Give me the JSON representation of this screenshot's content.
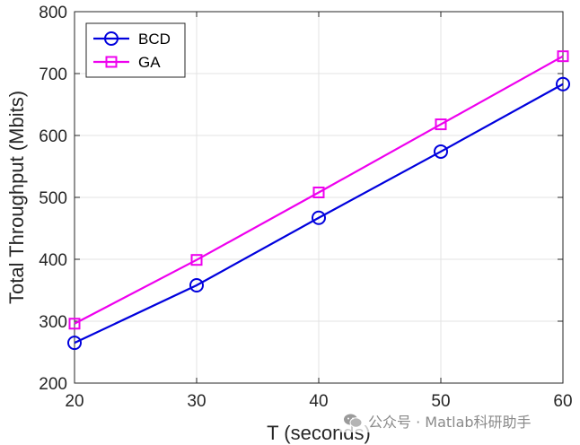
{
  "chart_data": {
    "type": "line",
    "x": [
      20,
      30,
      40,
      50,
      60
    ],
    "series": [
      {
        "name": "BCD",
        "values": [
          265,
          358,
          467,
          574,
          683
        ],
        "color": "#0000dd",
        "marker": "circle"
      },
      {
        "name": "GA",
        "values": [
          296,
          399,
          508,
          618,
          728
        ],
        "color": "#ee00ee",
        "marker": "square"
      }
    ],
    "xlabel": "T (seconds)",
    "ylabel": "Total Throughput (Mbits)",
    "xlim": [
      20,
      60
    ],
    "ylim": [
      200,
      800
    ],
    "xticks": [
      "20",
      "30",
      "40",
      "50",
      "60"
    ],
    "yticks": [
      "200",
      "300",
      "400",
      "500",
      "600",
      "700",
      "800"
    ],
    "grid": true,
    "legend_position": "top-left"
  },
  "watermark": {
    "text": "公众号 · Matlab科研助手",
    "icon": "wechat-icon"
  }
}
